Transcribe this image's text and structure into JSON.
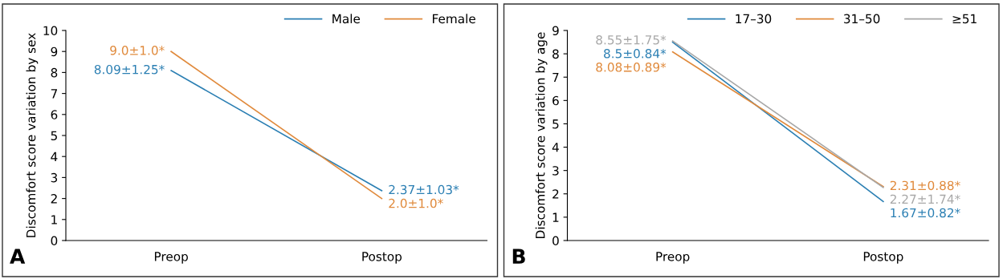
{
  "chart_data": [
    {
      "type": "line",
      "ylabel": "Discomfort score variation by sex",
      "categories": [
        "Preop",
        "Postop"
      ],
      "ylim": [
        0,
        10
      ],
      "yticks": [
        0,
        1,
        2,
        3,
        4,
        5,
        6,
        7,
        8,
        9,
        10
      ],
      "legend": "top right",
      "grid": false,
      "annotations": [
        "A"
      ],
      "series": [
        {
          "name": "Male",
          "color": "#2b7fb3",
          "values": [
            8.09,
            2.37
          ],
          "value_labels": [
            "8.09±1.25*",
            "2.37±1.03*"
          ]
        },
        {
          "name": "Female",
          "color": "#e08a3c",
          "values": [
            9.0,
            2.0
          ],
          "value_labels": [
            "9.0±1.0*",
            "2.0±1.0*"
          ]
        }
      ]
    },
    {
      "type": "line",
      "ylabel": "Discomfort score variation by age",
      "categories": [
        "Preop",
        "Postop"
      ],
      "ylim": [
        0,
        9
      ],
      "yticks": [
        0,
        1,
        2,
        3,
        4,
        5,
        6,
        7,
        8,
        9
      ],
      "legend": "top right",
      "grid": false,
      "annotations": [
        "B"
      ],
      "series": [
        {
          "name": "17–30",
          "color": "#2b7fb3",
          "values": [
            8.5,
            1.67
          ],
          "value_labels": [
            "8.5±0.84*",
            "1.67±0.82*"
          ]
        },
        {
          "name": "31–50",
          "color": "#e08a3c",
          "values": [
            8.08,
            2.31
          ],
          "value_labels": [
            "8.08±0.89*",
            "2.31±0.88*"
          ]
        },
        {
          "name": "≥51",
          "color": "#a8a8a8",
          "values": [
            8.55,
            2.27
          ],
          "value_labels": [
            "8.55±1.75*",
            "2.27±1.74*"
          ]
        }
      ]
    }
  ]
}
